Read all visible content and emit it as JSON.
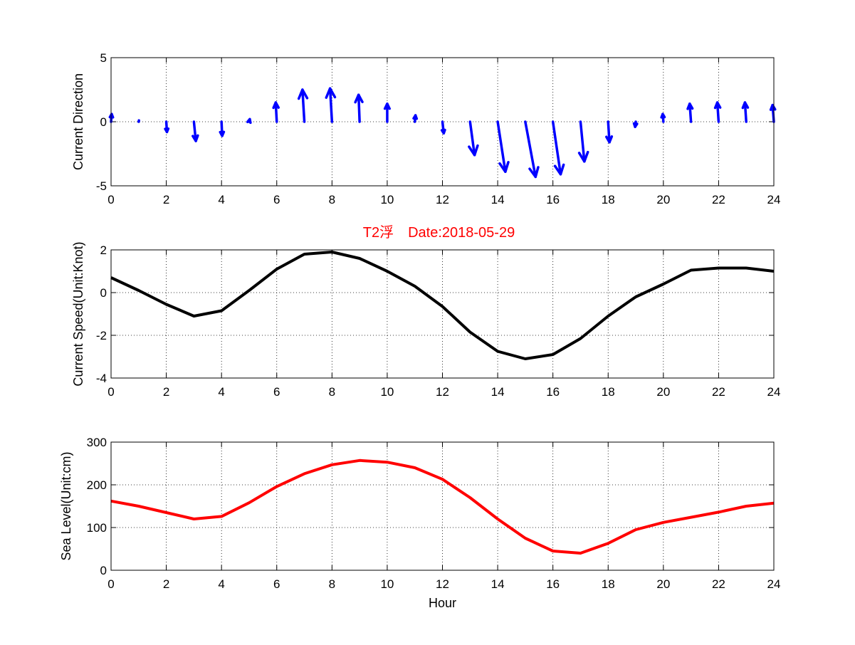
{
  "chart_data": [
    {
      "type": "quiver",
      "ylabel": "Current Direction",
      "xlim": [
        0,
        24
      ],
      "ylim": [
        -5,
        5
      ],
      "xticks": [
        "0",
        "2",
        "4",
        "6",
        "8",
        "10",
        "12",
        "14",
        "16",
        "18",
        "20",
        "22",
        "24"
      ],
      "yticks": [
        "-5",
        "0",
        "5"
      ],
      "grid": true,
      "color": "#0000ff",
      "x": [
        0,
        1,
        2,
        3,
        4,
        5,
        6,
        7,
        8,
        9,
        10,
        11,
        12,
        13,
        14,
        15,
        16,
        17,
        18,
        19,
        20,
        21,
        22,
        23,
        24
      ],
      "u": [
        0.05,
        0.02,
        0.05,
        0.15,
        0.05,
        0.05,
        -0.08,
        -0.15,
        -0.15,
        -0.08,
        0,
        0.05,
        0.1,
        0.35,
        0.6,
        0.8,
        0.6,
        0.3,
        0.1,
        -0.05,
        -0.05,
        -0.1,
        -0.1,
        -0.1,
        -0.1
      ],
      "v": [
        0.6,
        0.1,
        -0.8,
        -1.5,
        -1.1,
        0.2,
        1.5,
        2.5,
        2.6,
        2.1,
        1.4,
        0.5,
        -0.9,
        -2.6,
        -3.9,
        -4.3,
        -4.1,
        -3.1,
        -1.6,
        -0.4,
        0.6,
        1.4,
        1.5,
        1.5,
        1.3
      ]
    },
    {
      "type": "line",
      "title": "T2浮　Date:2018-05-29",
      "ylabel": "Current Speed(Unit:Knot)",
      "xlim": [
        0,
        24
      ],
      "ylim": [
        -4,
        2
      ],
      "xticks": [
        "0",
        "2",
        "4",
        "6",
        "8",
        "10",
        "12",
        "14",
        "16",
        "18",
        "20",
        "22",
        "24"
      ],
      "yticks": [
        "-4",
        "-2",
        "0",
        "2"
      ],
      "grid": true,
      "color": "#000000",
      "x": [
        0,
        1,
        2,
        3,
        4,
        5,
        6,
        7,
        8,
        9,
        10,
        11,
        12,
        13,
        14,
        15,
        16,
        17,
        18,
        19,
        20,
        21,
        22,
        23,
        24
      ],
      "y": [
        0.7,
        0.1,
        -0.55,
        -1.1,
        -0.85,
        0.1,
        1.1,
        1.8,
        1.9,
        1.6,
        1.0,
        0.3,
        -0.65,
        -1.85,
        -2.75,
        -3.1,
        -2.9,
        -2.15,
        -1.1,
        -0.2,
        0.4,
        1.05,
        1.15,
        1.15,
        1.0
      ]
    },
    {
      "type": "line",
      "xlabel": "Hour",
      "ylabel": "Sea Level(Unit:cm)",
      "xlim": [
        0,
        24
      ],
      "ylim": [
        0,
        300
      ],
      "xticks": [
        "0",
        "2",
        "4",
        "6",
        "8",
        "10",
        "12",
        "14",
        "16",
        "18",
        "20",
        "22",
        "24"
      ],
      "yticks": [
        "0",
        "100",
        "200",
        "300"
      ],
      "grid": true,
      "color": "#ff0000",
      "x": [
        0,
        1,
        2,
        3,
        4,
        5,
        6,
        7,
        8,
        9,
        10,
        11,
        12,
        13,
        14,
        15,
        16,
        17,
        18,
        19,
        20,
        21,
        22,
        23,
        24
      ],
      "y": [
        162,
        150,
        135,
        120,
        126,
        158,
        196,
        226,
        247,
        257,
        253,
        240,
        213,
        170,
        120,
        75,
        45,
        40,
        63,
        95,
        112,
        124,
        136,
        150,
        157
      ]
    }
  ]
}
